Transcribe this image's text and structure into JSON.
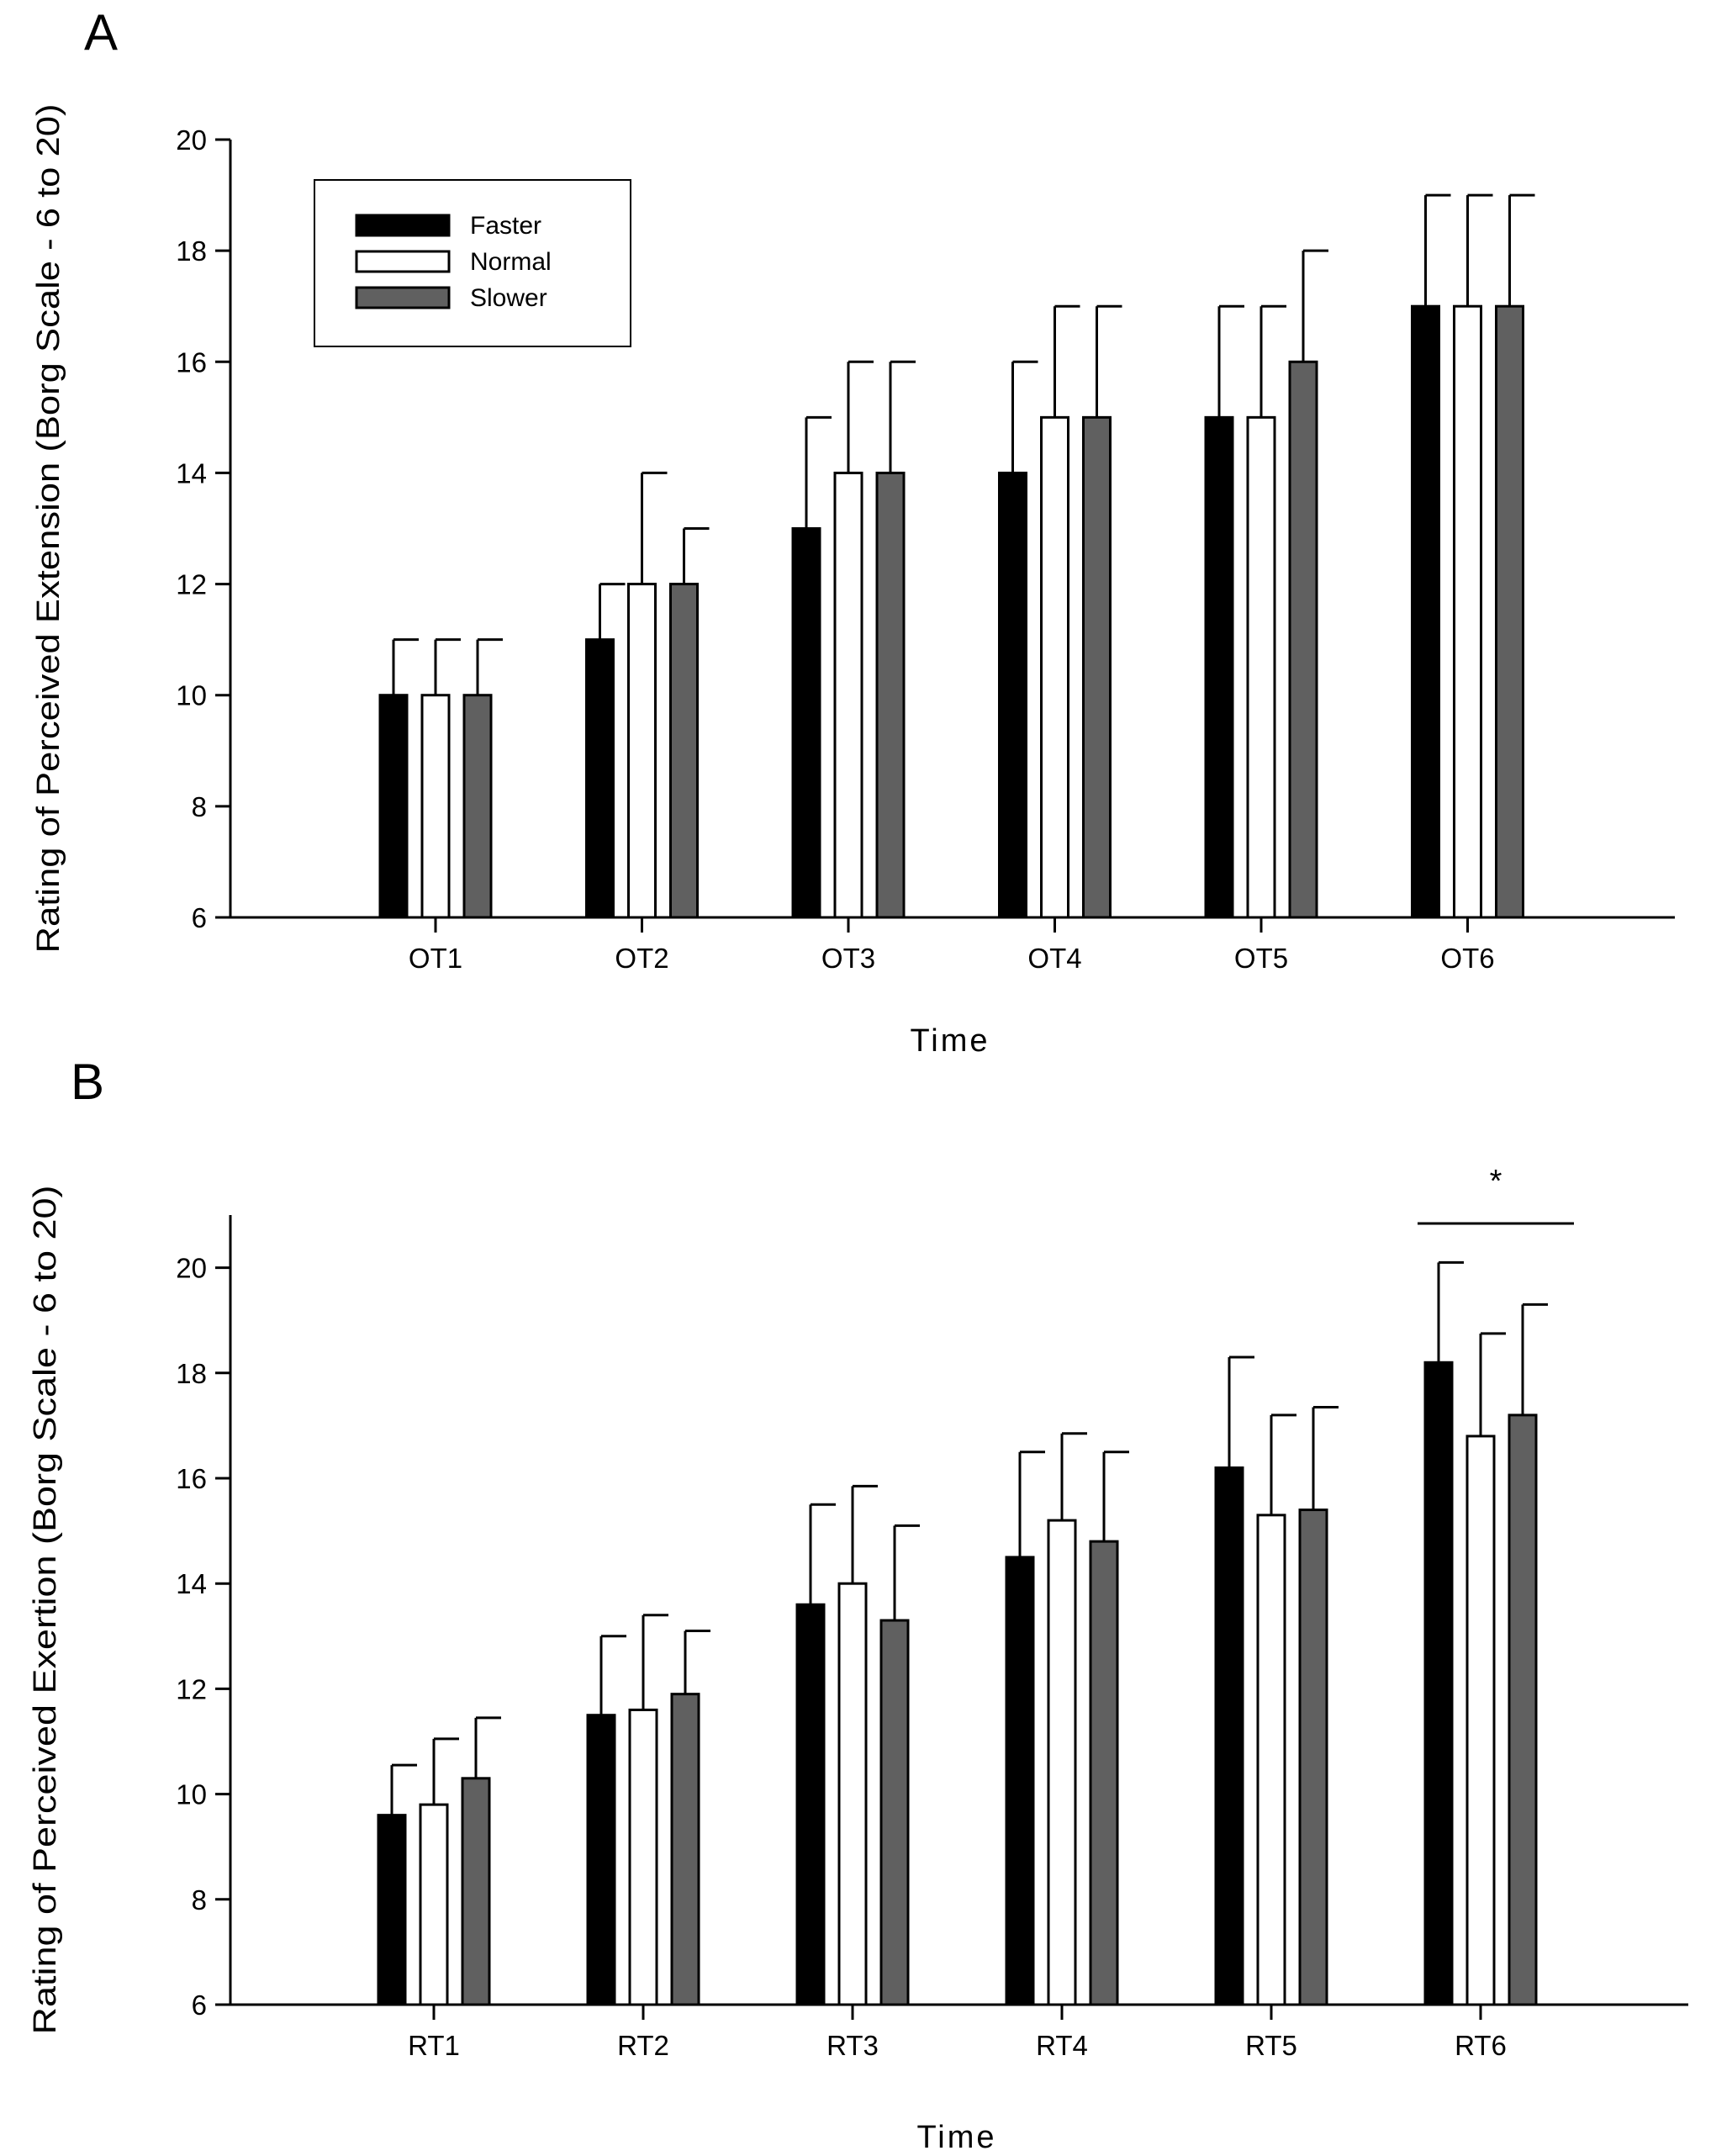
{
  "chart_data": [
    {
      "panel": "A",
      "type": "bar",
      "ylabel": "Rating of Perceived Extension (Borg Scale - 6 to 20)",
      "xlabel": "Time",
      "ylim": [
        6,
        20
      ],
      "yticks": [
        6,
        8,
        10,
        12,
        14,
        16,
        18,
        20
      ],
      "categories": [
        "OT1",
        "OT2",
        "OT3",
        "OT4",
        "OT5",
        "OT6"
      ],
      "series": [
        {
          "name": "Faster",
          "color": "#000000",
          "values": [
            10,
            11,
            13,
            14,
            15,
            17
          ],
          "error": [
            1,
            1,
            2,
            2,
            2,
            2
          ]
        },
        {
          "name": "Normal",
          "color": "#ffffff",
          "values": [
            10,
            12,
            14,
            15,
            15,
            17
          ],
          "error": [
            1,
            2,
            2,
            2,
            2,
            2
          ]
        },
        {
          "name": "Slower",
          "color": "#606060",
          "values": [
            10,
            12,
            14,
            15,
            16,
            17
          ],
          "error": [
            1,
            1,
            2,
            2,
            2,
            2
          ]
        }
      ],
      "legend": "top-left"
    },
    {
      "panel": "B",
      "type": "bar",
      "ylabel": "Rating of Perceived Exertion (Borg Scale - 6 to 20)",
      "xlabel": "Time",
      "ylim": [
        6,
        21
      ],
      "yticks": [
        6,
        8,
        10,
        12,
        14,
        16,
        18,
        20
      ],
      "categories": [
        "RT1",
        "RT2",
        "RT3",
        "RT4",
        "RT5",
        "RT6"
      ],
      "series": [
        {
          "name": "Faster",
          "color": "#000000",
          "values": [
            9.6,
            11.5,
            13.6,
            14.5,
            16.2,
            18.2
          ],
          "error": [
            0.95,
            1.5,
            1.9,
            2.0,
            2.1,
            1.9
          ]
        },
        {
          "name": "Normal",
          "color": "#ffffff",
          "values": [
            9.8,
            11.6,
            14.0,
            15.2,
            15.3,
            16.8
          ],
          "error": [
            1.25,
            1.8,
            1.85,
            1.65,
            1.9,
            1.95
          ]
        },
        {
          "name": "Slower",
          "color": "#606060",
          "values": [
            10.3,
            11.9,
            13.3,
            14.8,
            15.4,
            17.2
          ],
          "error": [
            1.15,
            1.2,
            1.8,
            1.7,
            1.95,
            2.1
          ]
        }
      ],
      "annotation": {
        "text": "*",
        "category": "RT6",
        "type": "significance-bracket"
      }
    }
  ],
  "panels": {
    "a": "A",
    "b": "B"
  }
}
